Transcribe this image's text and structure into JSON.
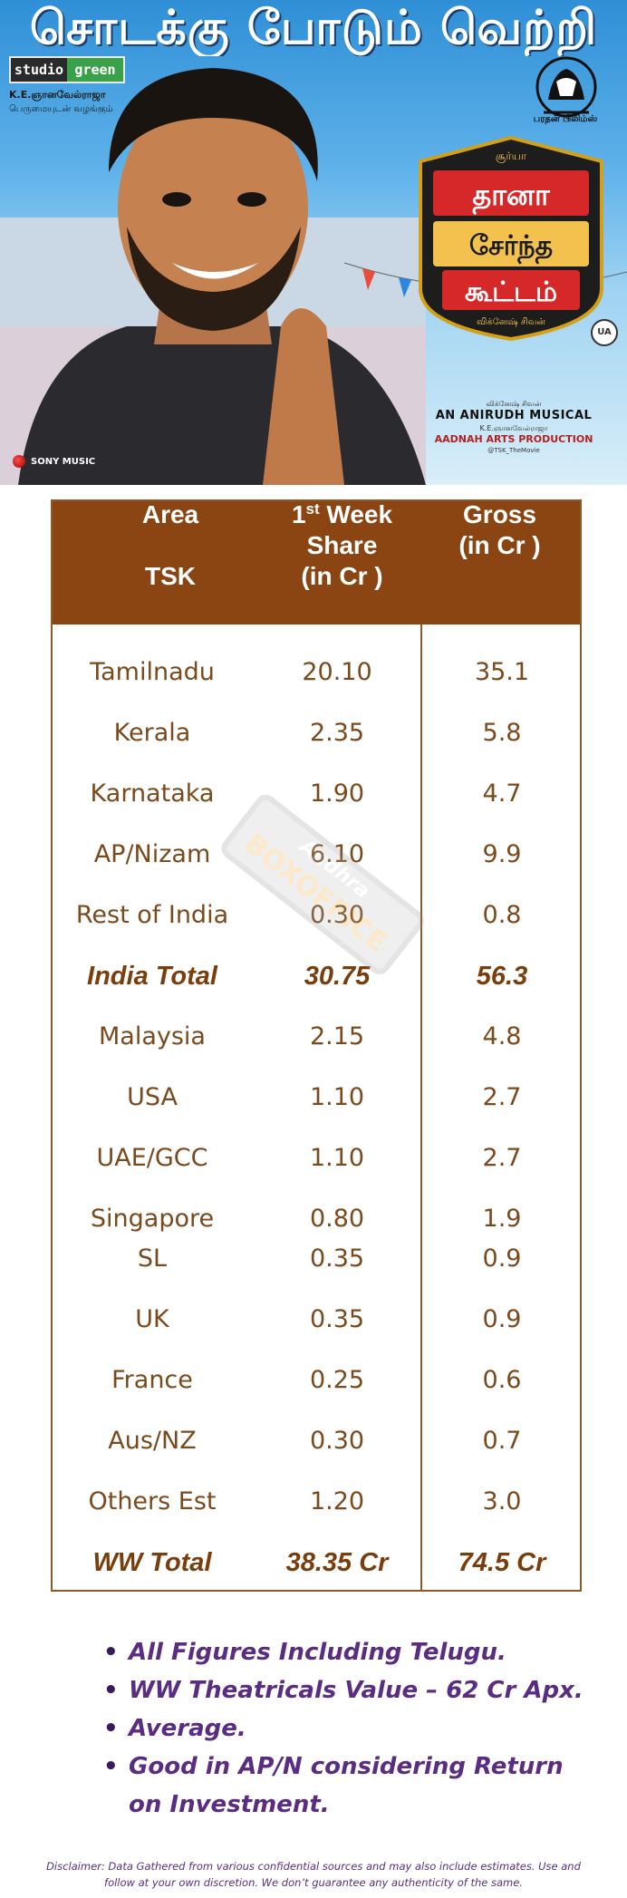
{
  "poster": {
    "headline": "சொடக்கு போடும் வெற்றி",
    "studio_left": "studio",
    "studio_right": "green",
    "producer": "K.E.ஞானவேல்ராஜா",
    "presents": "பெருமையுடன் வழங்கும்",
    "distributor": "பரதன் பிலிம்ஸ்",
    "title_line1": "தானா",
    "title_line2": "சேர்ந்த",
    "title_line3": "கூட்டம்",
    "lead_credit": "சூர்யா",
    "certificate": "UA",
    "director_credit": "விக்னேஷ் சிவன்",
    "musical_credit": "AN ANIRUDH MUSICAL",
    "production_credit": "AADNAH ARTS PRODUCTION",
    "hashtag": "@TSK_TheMovie",
    "music_label": "SONY MUSIC"
  },
  "table": {
    "headers": {
      "area_line1": "Area",
      "area_line2": "TSK",
      "share_line1": "1",
      "share_sup": "st",
      "share_line1_rest": " Week",
      "share_line2": "Share",
      "share_line3": "(in Cr )",
      "gross_line1": "Gross",
      "gross_line2": "(in Cr )"
    },
    "rows": [
      {
        "area": "Tamilnadu",
        "share": "20.10",
        "gross": "35.1",
        "bold": false
      },
      {
        "area": "Kerala",
        "share": "2.35",
        "gross": "5.8",
        "bold": false
      },
      {
        "area": "Karnataka",
        "share": "1.90",
        "gross": "4.7",
        "bold": false
      },
      {
        "area": "AP/Nizam",
        "share": "6.10",
        "gross": "9.9",
        "bold": false
      },
      {
        "area": "Rest of India",
        "share": "0.30",
        "gross": "0.8",
        "bold": false
      },
      {
        "area": "India Total",
        "share": "30.75",
        "gross": "56.3",
        "bold": true
      },
      {
        "area": "Malaysia",
        "share": "2.15",
        "gross": "4.8",
        "bold": false
      },
      {
        "area": "USA",
        "share": "1.10",
        "gross": "2.7",
        "bold": false
      },
      {
        "area": "UAE/GCC",
        "share": "1.10",
        "gross": "2.7",
        "bold": false
      },
      {
        "area": "Singapore",
        "share": "0.80",
        "gross": "1.9",
        "bold": false
      },
      {
        "area": "SL",
        "share": "0.35",
        "gross": "0.9",
        "bold": false
      },
      {
        "area": "UK",
        "share": "0.35",
        "gross": "0.9",
        "bold": false
      },
      {
        "area": "France",
        "share": "0.25",
        "gross": "0.6",
        "bold": false
      },
      {
        "area": "Aus/NZ",
        "share": "0.30",
        "gross": "0.7",
        "bold": false
      },
      {
        "area": "Others Est",
        "share": "1.20",
        "gross": "3.0",
        "bold": false
      },
      {
        "area": "WW Total",
        "share": "38.35 Cr",
        "gross": "74.5 Cr",
        "bold": true
      }
    ]
  },
  "watermark": {
    "line1": "Andhra",
    "line2": "BOXOFFICE"
  },
  "notes": [
    "All Figures Including Telugu.",
    "WW Theatricals Value – 62 Cr Apx.",
    "Average.",
    "Good in AP/N considering Return on Investment."
  ],
  "disclaimer": "Disclaimer: Data Gathered from various confidential sources and may also include estimates. Use and follow at your own discretion. We don’t guarantee any authenticity of the same.",
  "colors": {
    "header_bg": "#8b4513",
    "text_brown": "#7a4a1c",
    "notes_purple": "#5a2d82"
  }
}
